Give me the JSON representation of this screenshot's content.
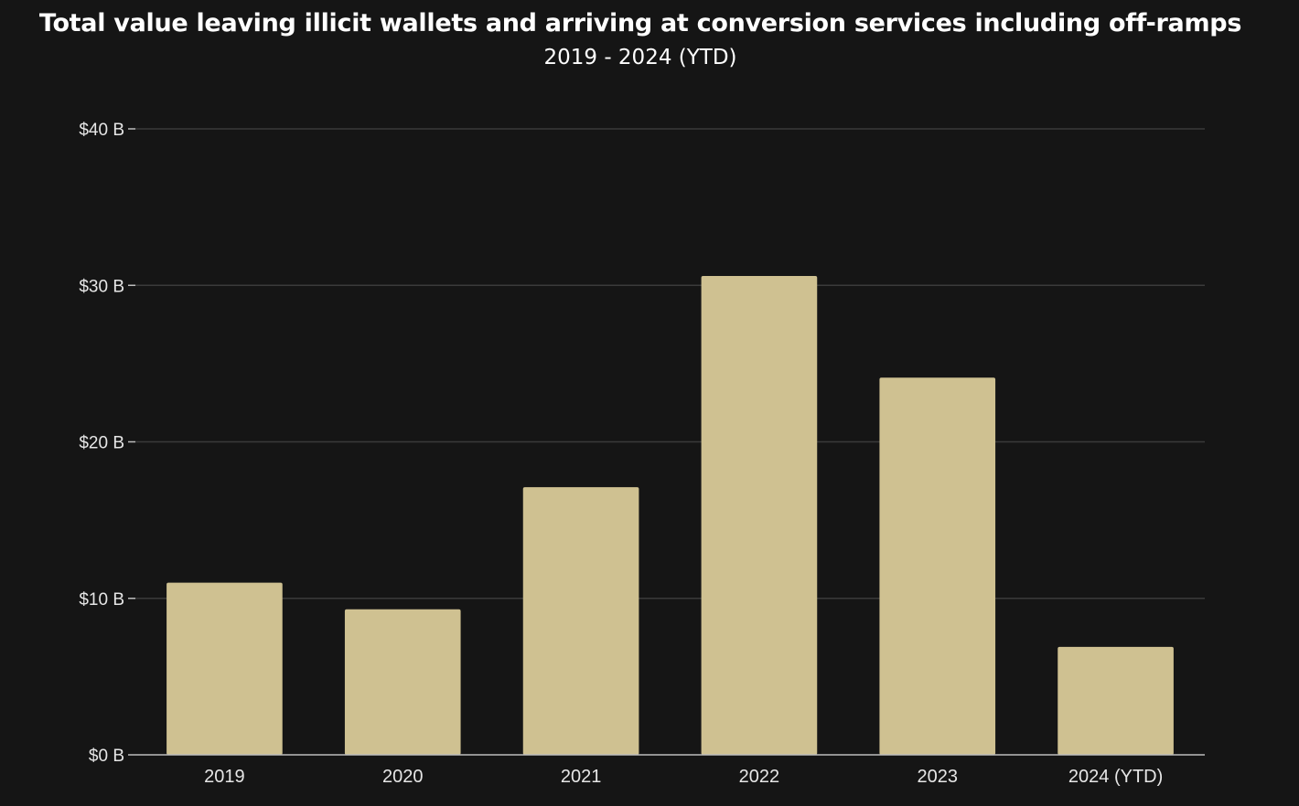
{
  "chart_data": {
    "type": "bar",
    "title": "Total value leaving illicit wallets and arriving at conversion services including off-ramps",
    "subtitle": "2019 - 2024 (YTD)",
    "categories": [
      "2019",
      "2020",
      "2021",
      "2022",
      "2023",
      "2024 (YTD)"
    ],
    "values": [
      11.0,
      9.3,
      17.1,
      30.6,
      24.1,
      6.9
    ],
    "value_unit": "B USD",
    "ylim": [
      0,
      40
    ],
    "yticks": [
      0,
      10,
      20,
      30,
      40
    ],
    "ytick_labels": [
      "$0 B",
      "$10 B",
      "$20 B",
      "$30 B",
      "$40 B"
    ],
    "xlabel": "",
    "ylabel": "",
    "grid": true,
    "bar_color": "#cfc191",
    "background_color": "#151515"
  }
}
